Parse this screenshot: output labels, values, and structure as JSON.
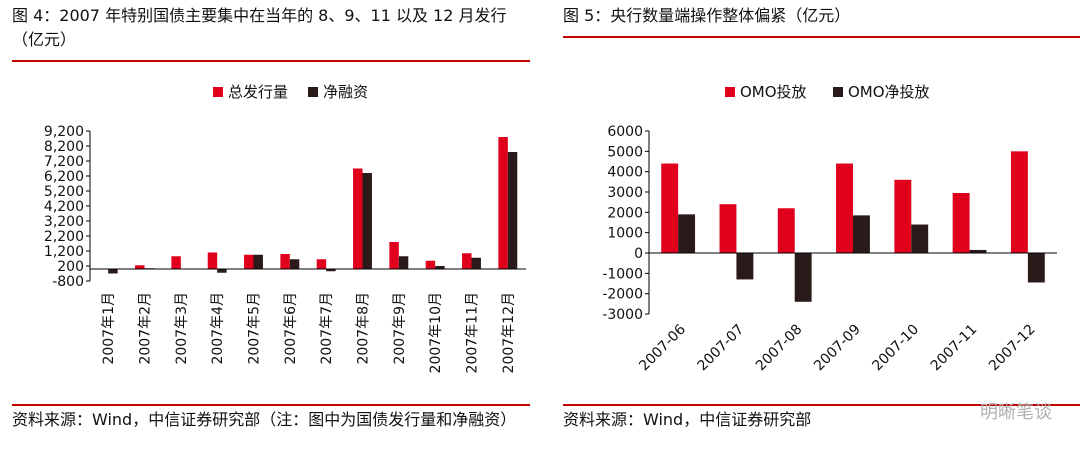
{
  "left": {
    "title": "图 4：2007 年特别国债主要集中在当年的 8、9、11 以及 12 月发行（亿元）",
    "source": "资料来源：Wind，中信证券研究部（注：图中为国债发行量和净融资）"
  },
  "right": {
    "title": "图 5：央行数量端操作整体偏紧（亿元）",
    "source": "资料来源：Wind，中信证券研究部"
  },
  "watermark": "明晰笔谈",
  "colors": {
    "red": "#e0001b",
    "dark": "#2b1a1a",
    "rule": "#c00000"
  },
  "chart_data": [
    {
      "type": "bar",
      "categories": [
        "2007年1月",
        "2007年2月",
        "2007年3月",
        "2007年4月",
        "2007年5月",
        "2007年6月",
        "2007年7月",
        "2007年8月",
        "2007年9月",
        "2007年10月",
        "2007年11月",
        "2007年12月"
      ],
      "series": [
        {
          "name": "总发行量",
          "color": "#e0001b",
          "values": [
            0,
            250,
            850,
            1100,
            950,
            1000,
            650,
            6700,
            1800,
            550,
            1050,
            8800
          ]
        },
        {
          "name": "净融资",
          "color": "#2b1a1a",
          "values": [
            -300,
            50,
            0,
            -250,
            950,
            650,
            -150,
            6400,
            850,
            200,
            750,
            7800
          ]
        }
      ],
      "yticks": [
        -800,
        200,
        1200,
        2200,
        3200,
        4200,
        5200,
        6200,
        7200,
        8200,
        9200
      ],
      "ytick_labels": [
        "-800",
        "200",
        "1,200",
        "2,200",
        "3,200",
        "4,200",
        "5,200",
        "6,200",
        "7,200",
        "8,200",
        "9,200"
      ],
      "ylim": [
        -800,
        9200
      ],
      "legend": "top"
    },
    {
      "type": "bar",
      "categories": [
        "2007-06",
        "2007-07",
        "2007-08",
        "2007-09",
        "2007-10",
        "2007-11",
        "2007-12"
      ],
      "series": [
        {
          "name": "OMO投放",
          "color": "#e0001b",
          "values": [
            4400,
            2400,
            2200,
            4400,
            3600,
            2950,
            5000
          ]
        },
        {
          "name": "OMO净投放",
          "color": "#2b1a1a",
          "values": [
            1900,
            -1300,
            -2400,
            1850,
            1400,
            150,
            -1450
          ]
        }
      ],
      "yticks": [
        -3000,
        -2000,
        -1000,
        0,
        1000,
        2000,
        3000,
        4000,
        5000,
        6000
      ],
      "ytick_labels": [
        "-3000",
        "-2000",
        "-1000",
        "0",
        "1000",
        "2000",
        "3000",
        "4000",
        "5000",
        "6000"
      ],
      "ylim": [
        -3000,
        6000
      ],
      "legend": "top"
    }
  ]
}
